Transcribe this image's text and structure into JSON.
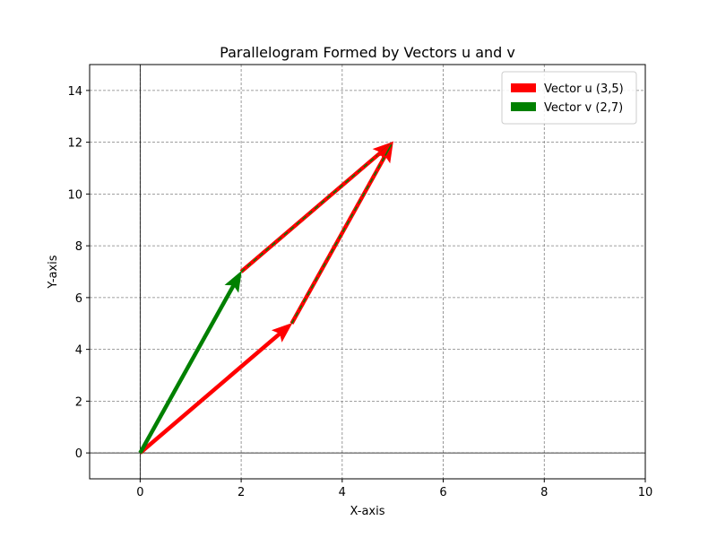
{
  "chart_data": {
    "type": "vector-plot",
    "title": "Parallelogram Formed by Vectors u and v",
    "xlabel": "X-axis",
    "ylabel": "Y-axis",
    "xlim": [
      -1,
      10
    ],
    "ylim": [
      -1,
      15
    ],
    "xticks": [
      0,
      2,
      4,
      6,
      8,
      10
    ],
    "yticks": [
      0,
      2,
      4,
      6,
      8,
      10,
      12,
      14
    ],
    "grid": true,
    "legend_position": "top-right",
    "legend": [
      {
        "label": "Vector u (3,5)",
        "color": "#ff0000"
      },
      {
        "label": "Vector v (2,7)",
        "color": "#008000"
      }
    ],
    "vectors": [
      {
        "name": "u",
        "from": [
          0,
          0
        ],
        "to": [
          3,
          5
        ],
        "color": "#ff0000",
        "style": "solid"
      },
      {
        "name": "v",
        "from": [
          0,
          0
        ],
        "to": [
          2,
          7
        ],
        "color": "#008000",
        "style": "solid"
      },
      {
        "name": "u",
        "from": [
          2,
          7
        ],
        "to": [
          5,
          12
        ],
        "color": "#ff0000",
        "style": "dashed-overlay",
        "overlay_color": "#008000"
      },
      {
        "name": "v",
        "from": [
          3,
          5
        ],
        "to": [
          5,
          12
        ],
        "color": "#ff0000",
        "style": "dashed-overlay",
        "overlay_color": "#008000"
      }
    ]
  }
}
